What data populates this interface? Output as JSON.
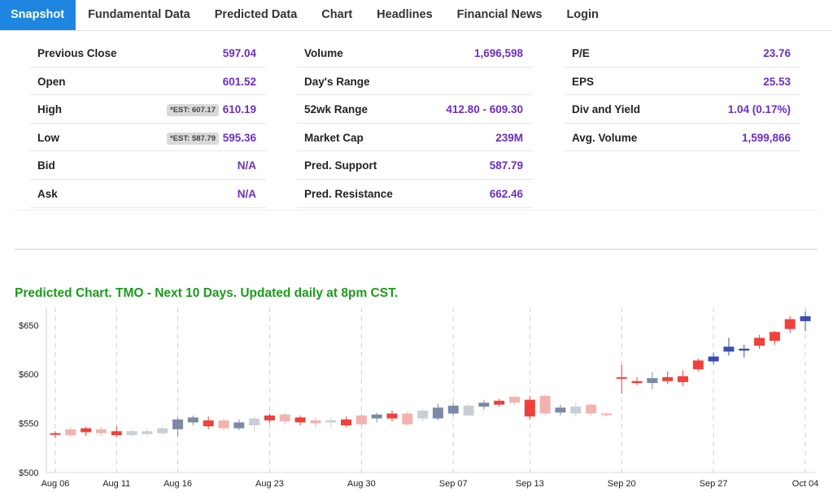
{
  "tabs": [
    {
      "label": "Snapshot",
      "active": true
    },
    {
      "label": "Fundamental Data"
    },
    {
      "label": "Predicted Data"
    },
    {
      "label": "Chart"
    },
    {
      "label": "Headlines"
    },
    {
      "label": "Financial News"
    },
    {
      "label": "Login"
    }
  ],
  "stats": {
    "col1": [
      {
        "label": "Previous Close",
        "value": "597.04"
      },
      {
        "label": "Open",
        "value": "601.52"
      },
      {
        "label": "High",
        "value": "610.19",
        "est": "*EST: 607.17"
      },
      {
        "label": "Low",
        "value": "595.36",
        "est": "*EST: 587.79"
      },
      {
        "label": "Bid",
        "value": "N/A"
      },
      {
        "label": "Ask",
        "value": "N/A"
      }
    ],
    "col2": [
      {
        "label": "Volume",
        "value": "1,696,598"
      },
      {
        "label": "Day's Range",
        "value": ""
      },
      {
        "label": "52wk Range",
        "value": "412.80 - 609.30"
      },
      {
        "label": "Market Cap",
        "value": "239M"
      },
      {
        "label": "Pred. Support",
        "value": "587.79"
      },
      {
        "label": "Pred. Resistance",
        "value": "662.46"
      }
    ],
    "col3": [
      {
        "label": "P/E",
        "value": "23.76"
      },
      {
        "label": "EPS",
        "value": "25.53"
      },
      {
        "label": "Div and Yield",
        "value": "1.04 (0.17%)"
      },
      {
        "label": "Avg. Volume",
        "value": "1,599,866"
      }
    ]
  },
  "chart_title": "Predicted Chart. TMO - Next 10 Days. Updated daily at 8pm CST.",
  "chart_data": {
    "type": "candlestick",
    "title": "Predicted Chart. TMO - Next 10 Days. Updated daily at 8pm CST.",
    "ylim": [
      500,
      668
    ],
    "yticks": [
      "$650",
      "$600",
      "$550",
      "$500"
    ],
    "ytick_values": [
      650,
      600,
      550,
      500
    ],
    "xticks": [
      "Aug 06",
      "Aug 11",
      "Aug 16",
      "Aug 23",
      "Aug 30",
      "Sep 07",
      "Sep 13",
      "Sep 20",
      "Sep 27",
      "Oct 04"
    ],
    "xtick_index": [
      0,
      4,
      8,
      14,
      20,
      26,
      31,
      37,
      43,
      49
    ],
    "colors": {
      "red": "#f0403a",
      "pink": "#f2b3b0",
      "gray": "#c9ced6",
      "slate": "#7c89a6",
      "blue": "#3a4db0"
    },
    "candles": [
      {
        "o": 540,
        "h": 542,
        "l": 535,
        "c": 540,
        "k": "red"
      },
      {
        "o": 538,
        "h": 546,
        "l": 536,
        "c": 544,
        "k": "pink"
      },
      {
        "o": 541,
        "h": 547,
        "l": 537,
        "c": 545,
        "k": "red"
      },
      {
        "o": 540,
        "h": 546,
        "l": 537,
        "c": 544,
        "k": "pink"
      },
      {
        "o": 542,
        "h": 547,
        "l": 536,
        "c": 538,
        "k": "red"
      },
      {
        "o": 538,
        "h": 544,
        "l": 536,
        "c": 542,
        "k": "gray"
      },
      {
        "o": 539,
        "h": 545,
        "l": 537,
        "c": 542,
        "k": "gray"
      },
      {
        "o": 540,
        "h": 547,
        "l": 538,
        "c": 545,
        "k": "gray"
      },
      {
        "o": 544,
        "h": 556,
        "l": 537,
        "c": 554,
        "k": "slate"
      },
      {
        "o": 551,
        "h": 558,
        "l": 548,
        "c": 556,
        "k": "slate"
      },
      {
        "o": 553,
        "h": 557,
        "l": 544,
        "c": 547,
        "k": "red"
      },
      {
        "o": 545,
        "h": 555,
        "l": 543,
        "c": 553,
        "k": "pink"
      },
      {
        "o": 545,
        "h": 554,
        "l": 543,
        "c": 551,
        "k": "slate"
      },
      {
        "o": 548,
        "h": 557,
        "l": 541,
        "c": 555,
        "k": "gray"
      },
      {
        "o": 553,
        "h": 560,
        "l": 550,
        "c": 558,
        "k": "red"
      },
      {
        "o": 552,
        "h": 561,
        "l": 549,
        "c": 559,
        "k": "pink"
      },
      {
        "o": 556,
        "h": 558,
        "l": 548,
        "c": 551,
        "k": "red"
      },
      {
        "o": 550,
        "h": 556,
        "l": 546,
        "c": 553,
        "k": "pink"
      },
      {
        "o": 551,
        "h": 556,
        "l": 545,
        "c": 553,
        "k": "gray"
      },
      {
        "o": 548,
        "h": 557,
        "l": 546,
        "c": 554,
        "k": "red"
      },
      {
        "o": 549,
        "h": 560,
        "l": 546,
        "c": 558,
        "k": "pink"
      },
      {
        "o": 555,
        "h": 561,
        "l": 551,
        "c": 559,
        "k": "slate"
      },
      {
        "o": 555,
        "h": 563,
        "l": 552,
        "c": 560,
        "k": "red"
      },
      {
        "o": 549,
        "h": 562,
        "l": 547,
        "c": 560,
        "k": "pink"
      },
      {
        "o": 555,
        "h": 565,
        "l": 552,
        "c": 563,
        "k": "gray"
      },
      {
        "o": 555,
        "h": 570,
        "l": 553,
        "c": 566,
        "k": "slate"
      },
      {
        "o": 560,
        "h": 571,
        "l": 558,
        "c": 568,
        "k": "slate"
      },
      {
        "o": 558,
        "h": 570,
        "l": 557,
        "c": 568,
        "k": "gray"
      },
      {
        "o": 567,
        "h": 574,
        "l": 564,
        "c": 571,
        "k": "slate"
      },
      {
        "o": 569,
        "h": 575,
        "l": 567,
        "c": 573,
        "k": "red"
      },
      {
        "o": 571,
        "h": 578,
        "l": 569,
        "c": 577,
        "k": "pink"
      },
      {
        "o": 574,
        "h": 578,
        "l": 554,
        "c": 557,
        "k": "red"
      },
      {
        "o": 560,
        "h": 579,
        "l": 558,
        "c": 578,
        "k": "pink"
      },
      {
        "o": 566,
        "h": 569,
        "l": 558,
        "c": 561,
        "k": "slate"
      },
      {
        "o": 560,
        "h": 571,
        "l": 557,
        "c": 567,
        "k": "gray"
      },
      {
        "o": 569,
        "h": 570,
        "l": 558,
        "c": 560,
        "k": "pink"
      },
      {
        "o": 559,
        "h": 561,
        "l": 557,
        "c": 560,
        "k": "pink"
      },
      {
        "o": 596,
        "h": 610,
        "l": 580,
        "c": 597,
        "k": "red"
      },
      {
        "o": 591,
        "h": 597,
        "l": 589,
        "c": 593,
        "k": "red"
      },
      {
        "o": 591,
        "h": 602,
        "l": 585,
        "c": 596,
        "k": "slate"
      },
      {
        "o": 593,
        "h": 603,
        "l": 590,
        "c": 597,
        "k": "red"
      },
      {
        "o": 592,
        "h": 604,
        "l": 588,
        "c": 598,
        "k": "red"
      },
      {
        "o": 605,
        "h": 616,
        "l": 603,
        "c": 614,
        "k": "red"
      },
      {
        "o": 613,
        "h": 622,
        "l": 610,
        "c": 618,
        "k": "blue"
      },
      {
        "o": 623,
        "h": 637,
        "l": 619,
        "c": 628,
        "k": "blue"
      },
      {
        "o": 624,
        "h": 630,
        "l": 617,
        "c": 626,
        "k": "blue"
      },
      {
        "o": 629,
        "h": 640,
        "l": 626,
        "c": 637,
        "k": "red"
      },
      {
        "o": 634,
        "h": 644,
        "l": 630,
        "c": 643,
        "k": "red"
      },
      {
        "o": 646,
        "h": 659,
        "l": 642,
        "c": 656,
        "k": "red"
      },
      {
        "o": 654,
        "h": 664,
        "l": 644,
        "c": 659,
        "k": "blue"
      }
    ]
  }
}
